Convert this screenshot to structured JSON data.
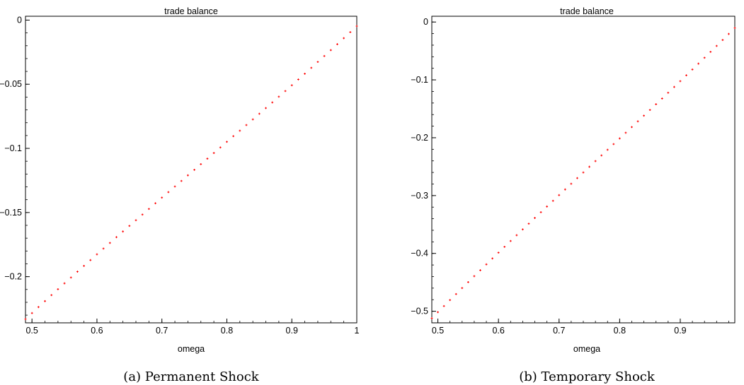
{
  "chart_data": [
    {
      "type": "scatter",
      "title": "trade balance",
      "xlabel": "omega",
      "ylabel": "",
      "caption": "(a) Permanent Shock",
      "xlim": [
        0.49,
        1.0
      ],
      "ylim": [
        -0.236,
        0.003
      ],
      "xticks": [
        0.5,
        0.6,
        0.7,
        0.8,
        0.9,
        1
      ],
      "xtick_labels": [
        "0.5",
        "0.6",
        "0.7",
        "0.8",
        "0.9",
        "1"
      ],
      "yticks": [
        0,
        -0.05,
        -0.1,
        -0.15,
        -0.2
      ],
      "ytick_labels": [
        "0",
        "−0.05",
        "−0.1",
        "−0.15",
        "−0.2"
      ],
      "grid": false,
      "color": "#ff0000",
      "series": [
        {
          "x": [
            0.49,
            0.5,
            0.51,
            0.52,
            0.53,
            0.54,
            0.55,
            0.56,
            0.57,
            0.58,
            0.59,
            0.6,
            0.61,
            0.62,
            0.63,
            0.64,
            0.65,
            0.66,
            0.67,
            0.68,
            0.69,
            0.7,
            0.71,
            0.72,
            0.73,
            0.74,
            0.75,
            0.76,
            0.77,
            0.78,
            0.79,
            0.8,
            0.81,
            0.82,
            0.83,
            0.84,
            0.85,
            0.86,
            0.87,
            0.88,
            0.89,
            0.9,
            0.91,
            0.92,
            0.93,
            0.94,
            0.95,
            0.96,
            0.97,
            0.98,
            0.99,
            1.0
          ],
          "y": [
            -0.2331,
            -0.2284,
            -0.2237,
            -0.2191,
            -0.2144,
            -0.2098,
            -0.2052,
            -0.2007,
            -0.1961,
            -0.1916,
            -0.1871,
            -0.1826,
            -0.1781,
            -0.1737,
            -0.1692,
            -0.1648,
            -0.1604,
            -0.156,
            -0.1516,
            -0.1472,
            -0.1428,
            -0.1384,
            -0.1341,
            -0.1297,
            -0.1254,
            -0.121,
            -0.1167,
            -0.1123,
            -0.108,
            -0.1036,
            -0.0993,
            -0.0949,
            -0.0905,
            -0.0862,
            -0.0818,
            -0.0774,
            -0.073,
            -0.0686,
            -0.0642,
            -0.0597,
            -0.0553,
            -0.0508,
            -0.0463,
            -0.0418,
            -0.0372,
            -0.0326,
            -0.028,
            -0.0234,
            -0.0188,
            -0.0141,
            -0.0094,
            -0.0047
          ]
        }
      ]
    },
    {
      "type": "scatter",
      "title": "trade balance",
      "xlabel": "omega",
      "ylabel": "",
      "caption": "(b) Temporary Shock",
      "xlim": [
        0.49,
        0.99
      ],
      "ylim": [
        -0.52,
        0.01
      ],
      "xticks": [
        0.5,
        0.6,
        0.7,
        0.8,
        0.9
      ],
      "xtick_labels": [
        "0.5",
        "0.6",
        "0.7",
        "0.8",
        "0.9"
      ],
      "yticks": [
        0,
        -0.1,
        -0.2,
        -0.3,
        -0.4,
        -0.5
      ],
      "ytick_labels": [
        "0",
        "−0.1",
        "−0.2",
        "−0.3",
        "−0.4",
        "−0.5"
      ],
      "grid": false,
      "color": "#ff0000",
      "series": [
        {
          "x": [
            0.49,
            0.5,
            0.51,
            0.52,
            0.53,
            0.54,
            0.55,
            0.56,
            0.57,
            0.58,
            0.59,
            0.6,
            0.61,
            0.62,
            0.63,
            0.64,
            0.65,
            0.66,
            0.67,
            0.68,
            0.69,
            0.7,
            0.71,
            0.72,
            0.73,
            0.74,
            0.75,
            0.76,
            0.77,
            0.78,
            0.79,
            0.8,
            0.81,
            0.82,
            0.83,
            0.84,
            0.85,
            0.86,
            0.87,
            0.88,
            0.89,
            0.9,
            0.91,
            0.92,
            0.93,
            0.94,
            0.95,
            0.96,
            0.97,
            0.98,
            0.99
          ],
          "y": [
            -0.512,
            -0.5015,
            -0.491,
            -0.4806,
            -0.4702,
            -0.4599,
            -0.4496,
            -0.4393,
            -0.4291,
            -0.4189,
            -0.4087,
            -0.3986,
            -0.3886,
            -0.3785,
            -0.3685,
            -0.3585,
            -0.3486,
            -0.3387,
            -0.3288,
            -0.3189,
            -0.309,
            -0.2992,
            -0.2894,
            -0.2796,
            -0.2698,
            -0.26,
            -0.2502,
            -0.2404,
            -0.2306,
            -0.2208,
            -0.211,
            -0.2012,
            -0.1914,
            -0.1816,
            -0.1717,
            -0.1619,
            -0.152,
            -0.1421,
            -0.1322,
            -0.1222,
            -0.1122,
            -0.1022,
            -0.0921,
            -0.082,
            -0.0719,
            -0.0617,
            -0.0515,
            -0.0413,
            -0.031,
            -0.0206,
            -0.0103
          ]
        }
      ]
    }
  ]
}
